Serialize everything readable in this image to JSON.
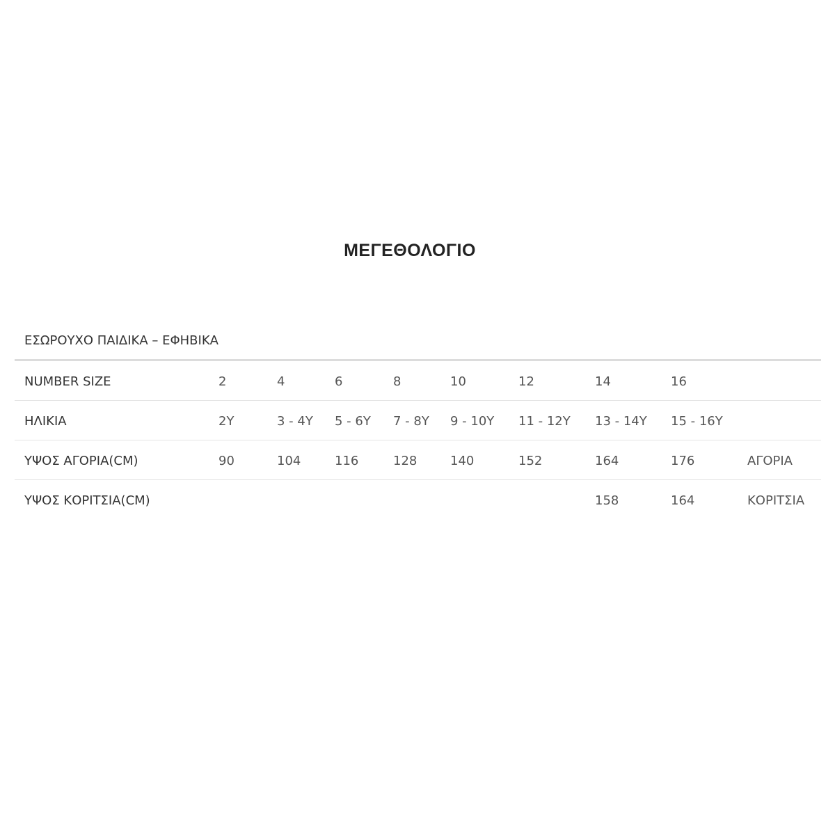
{
  "title": "ΜΕΓΕΘΟΛΟΓΙΟ",
  "subtitle": "ΕΣΩΡΟΥΧΟ ΠΑΙΔΙΚΑ – ΕΦΗΒΙΚΑ",
  "rows": [
    {
      "label": "NUMBER SIZE",
      "cells": [
        "2",
        "4",
        "6",
        "8",
        "10",
        "12",
        "14",
        "16",
        ""
      ]
    },
    {
      "label": "ΗΛΙΚΙΑ",
      "cells": [
        "2Y",
        "3 - 4Y",
        "5 - 6Y",
        "7 - 8Y",
        "9 - 10Y",
        "11 - 12Y",
        "13 - 14Y",
        "15 - 16Y",
        ""
      ]
    },
    {
      "label": "ΥΨΟΣ ΑΓΟΡΙΑ(CM)",
      "cells": [
        "90",
        "104",
        "116",
        "128",
        "140",
        "152",
        "164",
        "176",
        "ΑΓΟΡΙΑ"
      ]
    },
    {
      "label": "ΥΨΟΣ ΚΟΡΙΤΣΙΑ(CM)",
      "cells": [
        "",
        "",
        "",
        "",
        "",
        "",
        "158",
        "164",
        "ΚΟΡΙΤΣΙΑ"
      ]
    }
  ]
}
